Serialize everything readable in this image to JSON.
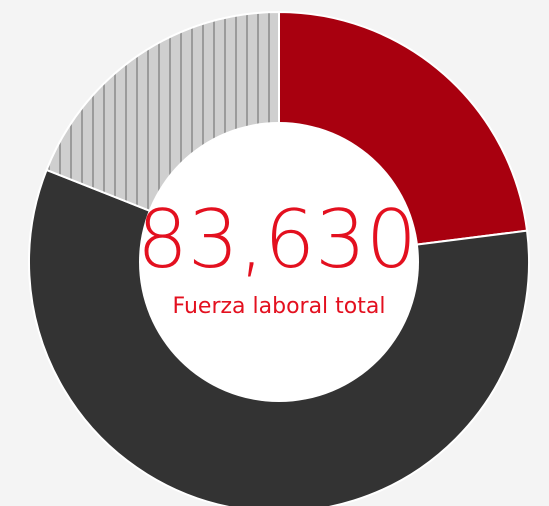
{
  "chart_data": {
    "type": "donut",
    "values": [
      23,
      58,
      19
    ],
    "colors": [
      "#a8000f",
      "#333333",
      "#c8c8c8"
    ],
    "hatched": [
      false,
      false,
      true
    ],
    "center_text": "83,630",
    "center_label": "Fuerza laboral total"
  }
}
